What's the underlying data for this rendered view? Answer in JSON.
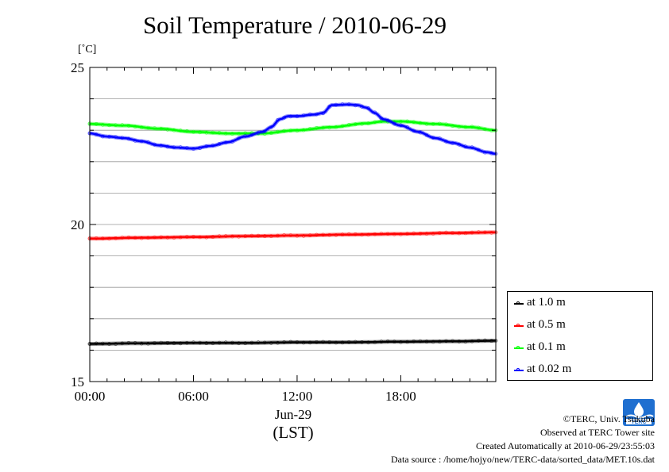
{
  "chart_data": {
    "type": "line",
    "title": "Soil Temperature / 2010-06-29",
    "ylabel": "[˚C]",
    "xlabel": "(LST)",
    "date_label": "Jun-29",
    "x_ticks": [
      "00:00",
      "06:00",
      "12:00",
      "18:00"
    ],
    "y_ticks": [
      "15",
      "20",
      "25"
    ],
    "x_range_hours": [
      0,
      23.5
    ],
    "ylim": [
      15,
      25
    ],
    "grid": true,
    "legend_position": "right",
    "series": [
      {
        "name": "at 1.0 m",
        "color": "#000000",
        "x": [
          0,
          3,
          6,
          9,
          12,
          15,
          18,
          21,
          23.5
        ],
        "values": [
          16.2,
          16.22,
          16.23,
          16.23,
          16.25,
          16.25,
          16.27,
          16.28,
          16.3
        ]
      },
      {
        "name": "at 0.5 m",
        "color": "#ff0000",
        "x": [
          0,
          3,
          6,
          9,
          12,
          15,
          18,
          21,
          23.5
        ],
        "values": [
          19.55,
          19.58,
          19.6,
          19.63,
          19.65,
          19.68,
          19.7,
          19.73,
          19.75
        ]
      },
      {
        "name": "at 0.1 m",
        "color": "#00ff00",
        "x": [
          0,
          2,
          4,
          6,
          8,
          10,
          12,
          14,
          16,
          17,
          18,
          20,
          22,
          23.5
        ],
        "values": [
          23.2,
          23.15,
          23.05,
          22.95,
          22.9,
          22.9,
          23.0,
          23.1,
          23.22,
          23.28,
          23.28,
          23.2,
          23.1,
          23.0
        ]
      },
      {
        "name": "at 0.02 m",
        "color": "#0000ff",
        "x": [
          0,
          1,
          2,
          3,
          4,
          5,
          6,
          7,
          8,
          9,
          10,
          10.5,
          11,
          11.5,
          12,
          13,
          13.5,
          14,
          15,
          15.5,
          16,
          16.5,
          17,
          18,
          19,
          20,
          21,
          22,
          23,
          23.5
        ],
        "values": [
          22.9,
          22.8,
          22.75,
          22.65,
          22.52,
          22.45,
          22.42,
          22.5,
          22.62,
          22.8,
          22.95,
          23.1,
          23.35,
          23.45,
          23.45,
          23.5,
          23.55,
          23.8,
          23.82,
          23.8,
          23.72,
          23.55,
          23.35,
          23.15,
          22.95,
          22.75,
          22.6,
          22.45,
          22.3,
          22.25
        ]
      }
    ]
  },
  "footer": {
    "copyright": "©TERC, Univ. Tsukuba",
    "observed": "Observed at TERC Tower site",
    "created": "Created Automatically at 2010-06-29/23:55:03",
    "source": "Data source : /home/hojyo/new/TERC-data/sorted_data/MET.10s.dat"
  },
  "logo": {
    "text": "TERC",
    "icon": "terc-logo-icon",
    "color": "#1f6fd0"
  }
}
